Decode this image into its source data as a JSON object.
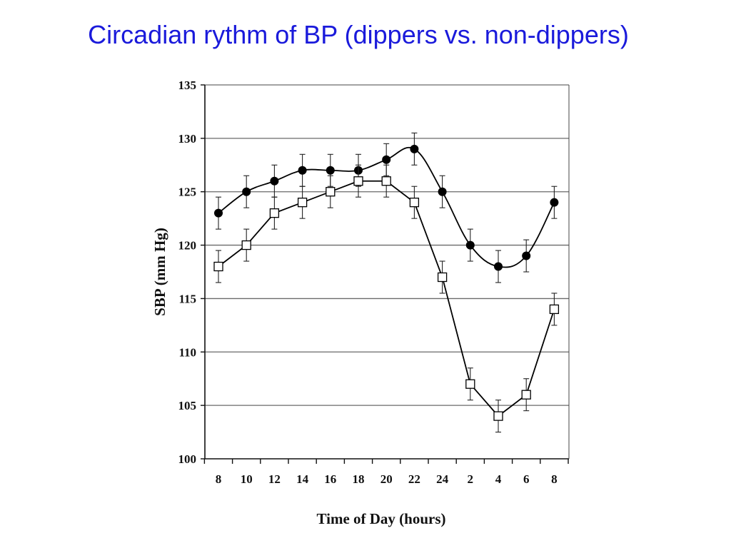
{
  "slide": {
    "title": "Circadian rythm of BP (dippers vs. non-dippers)"
  },
  "chart_data": {
    "type": "line",
    "title": "",
    "xlabel": "Time of Day (hours)",
    "ylabel": "SBP (mm Hg)",
    "categories": [
      "8",
      "10",
      "12",
      "14",
      "16",
      "18",
      "20",
      "22",
      "24",
      "2",
      "4",
      "6",
      "8"
    ],
    "ylim": [
      100,
      135
    ],
    "yticks": [
      100,
      105,
      110,
      115,
      120,
      125,
      130,
      135
    ],
    "grid": "horizontal",
    "error_bar": 1.5,
    "series": [
      {
        "marker": "filled-circle",
        "color": "#000000",
        "values": [
          123,
          125,
          126,
          127,
          127,
          127,
          128,
          129,
          125,
          120,
          118,
          119,
          124
        ]
      },
      {
        "marker": "open-square",
        "color": "#000000",
        "values": [
          118,
          120,
          123,
          124,
          125,
          126,
          126,
          124,
          117,
          107,
          104,
          106,
          114
        ]
      }
    ]
  }
}
